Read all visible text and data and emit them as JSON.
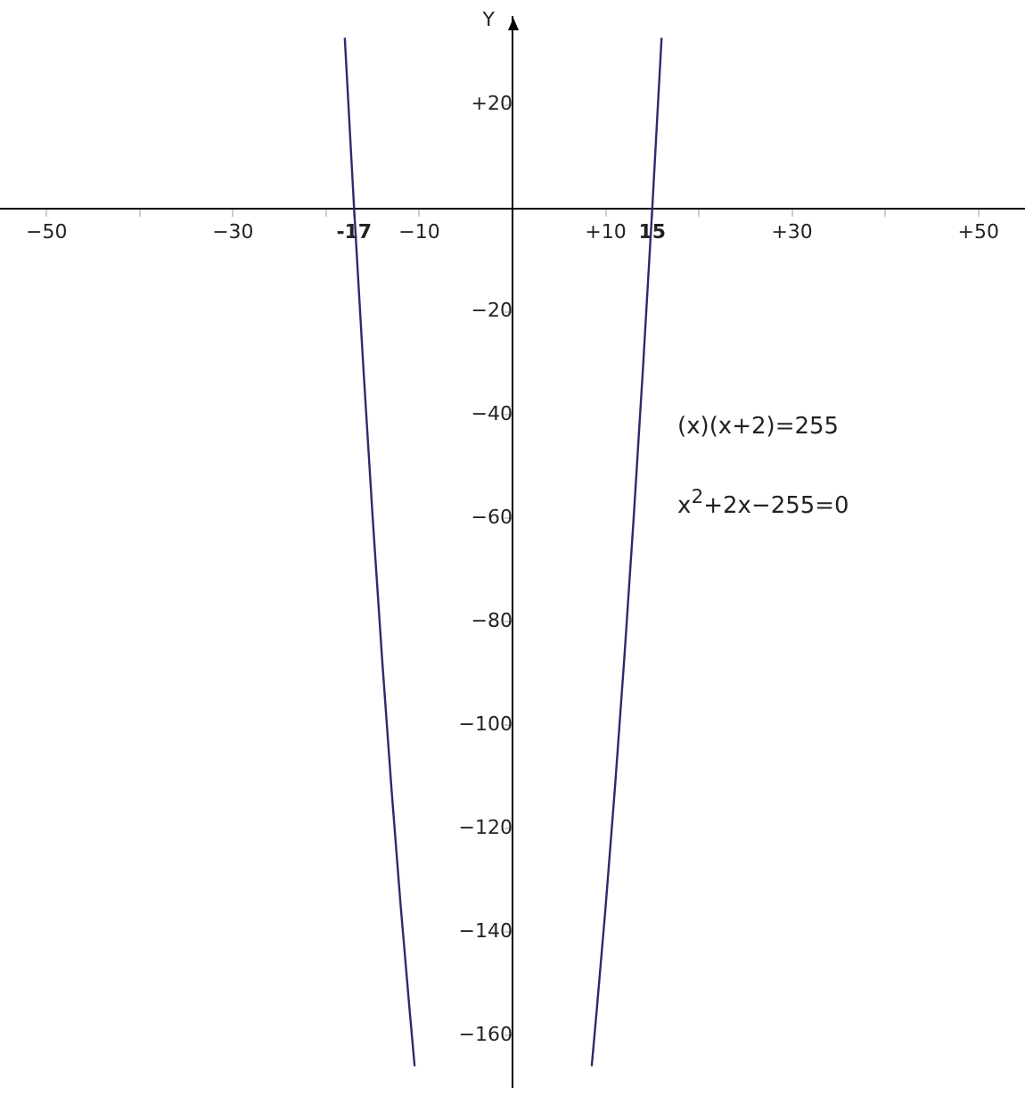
{
  "chart_data": {
    "type": "line",
    "ylabel": "Y",
    "xlim": [
      -55,
      55
    ],
    "ylim": [
      -170,
      37
    ],
    "xticks": [
      {
        "value": -50,
        "label": "−50"
      },
      {
        "value": -40,
        "label": null
      },
      {
        "value": -30,
        "label": "−30"
      },
      {
        "value": -20,
        "label": null
      },
      {
        "value": -17,
        "label": "-17"
      },
      {
        "value": -10,
        "label": "−10"
      },
      {
        "value": 10,
        "label": "+10"
      },
      {
        "value": 15,
        "label": "15"
      },
      {
        "value": 20,
        "label": null
      },
      {
        "value": 30,
        "label": "+30"
      },
      {
        "value": 40,
        "label": null
      },
      {
        "value": 50,
        "label": "+50"
      }
    ],
    "yticks": [
      {
        "value": 20,
        "label": "+20"
      },
      {
        "value": -20,
        "label": "−20"
      },
      {
        "value": -40,
        "label": "−40"
      },
      {
        "value": -60,
        "label": "−60"
      },
      {
        "value": -80,
        "label": "−80"
      },
      {
        "value": -100,
        "label": "−100"
      },
      {
        "value": -120,
        "label": "−120"
      },
      {
        "value": -140,
        "label": "−140"
      },
      {
        "value": -160,
        "label": "−160"
      }
    ],
    "series": [
      {
        "color": "#2b2b6b",
        "x": [
          -18,
          -17,
          -16,
          -15,
          -14,
          -13,
          -12,
          -11,
          -10.5,
          -1,
          8.5,
          9,
          10,
          11,
          12,
          13,
          14,
          15,
          16
        ],
        "values": [
          33,
          0,
          -31,
          -60,
          -87,
          -112,
          -135,
          -156,
          -166,
          null,
          -166,
          -156,
          -135,
          -112,
          -87,
          -60,
          -31,
          0,
          33
        ]
      }
    ],
    "annotations": [
      "(x)(x+2)=255",
      "x$^{2}$+2x−255=0"
    ],
    "grid": false,
    "legend": false,
    "marker": "none",
    "line_style": "solid"
  }
}
